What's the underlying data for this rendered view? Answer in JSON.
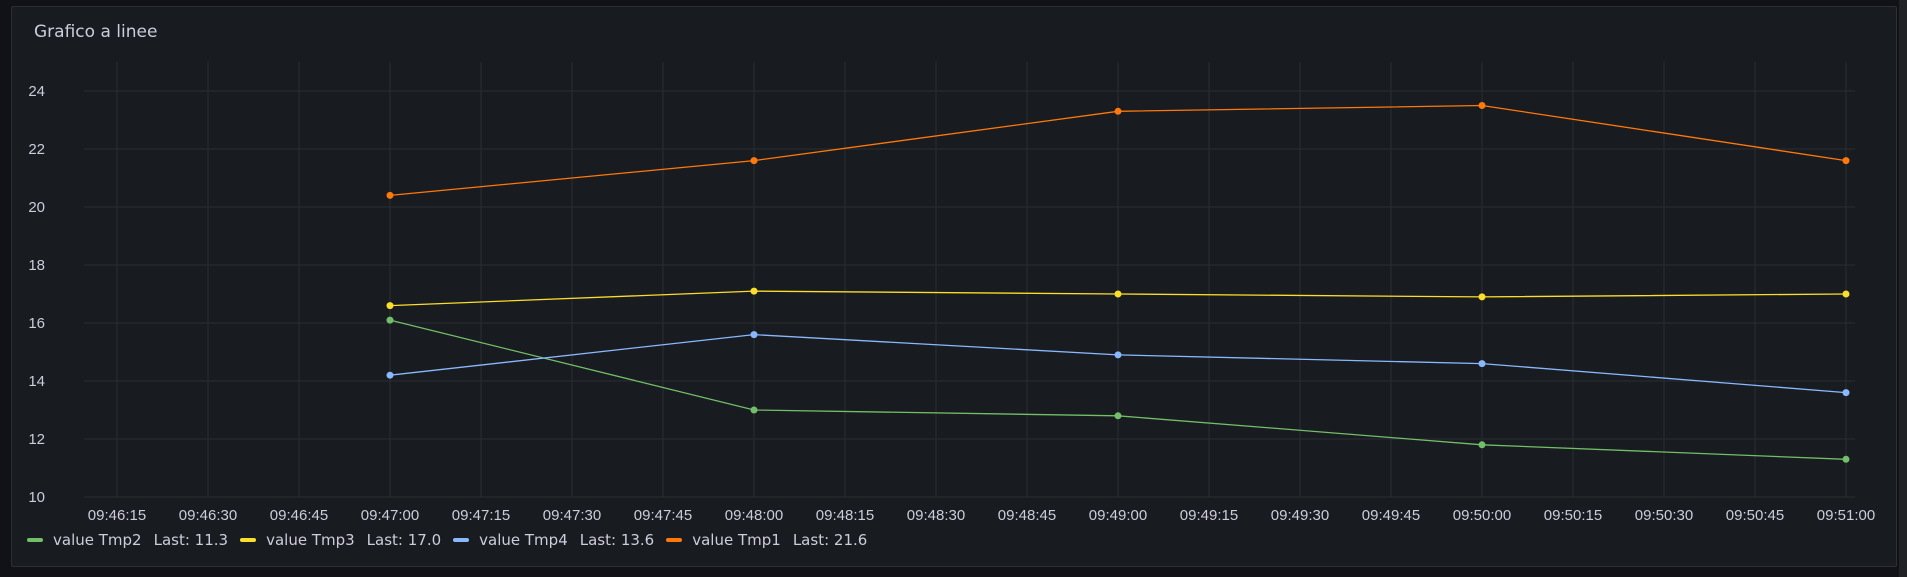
{
  "panel": {
    "title": "Grafico a linee"
  },
  "legend_last_prefix": "Last:",
  "chart_data": {
    "type": "line",
    "title": "Grafico a linee",
    "xlabel": "",
    "ylabel": "",
    "ylim": [
      10,
      25
    ],
    "yticks": [
      10,
      12,
      14,
      16,
      18,
      20,
      22,
      24
    ],
    "x_tick_labels": [
      "09:46:15",
      "09:46:30",
      "09:46:45",
      "09:47:00",
      "09:47:15",
      "09:47:30",
      "09:47:45",
      "09:48:00",
      "09:48:15",
      "09:48:30",
      "09:48:45",
      "09:49:00",
      "09:49:15",
      "09:49:30",
      "09:49:45",
      "09:50:00",
      "09:50:15",
      "09:50:30",
      "09:50:45",
      "09:51:00"
    ],
    "x": [
      "09:47:00",
      "09:48:00",
      "09:49:00",
      "09:50:00",
      "09:51:00"
    ],
    "grid": true,
    "legend_position": "bottom-left",
    "series": [
      {
        "name": "value Tmp2",
        "color": "#73bf69",
        "values": [
          16.1,
          13.0,
          12.8,
          11.8,
          11.3
        ],
        "last": "11.3"
      },
      {
        "name": "value Tmp3",
        "color": "#fade2a",
        "values": [
          16.6,
          17.1,
          17.0,
          16.9,
          17.0
        ],
        "last": "17.0"
      },
      {
        "name": "value Tmp4",
        "color": "#8ab8ff",
        "values": [
          14.2,
          15.6,
          14.9,
          14.6,
          13.6
        ],
        "last": "13.6"
      },
      {
        "name": "value Tmp1",
        "color": "#ff780a",
        "values": [
          20.4,
          21.6,
          23.3,
          23.5,
          21.6
        ],
        "last": "21.6"
      }
    ]
  }
}
